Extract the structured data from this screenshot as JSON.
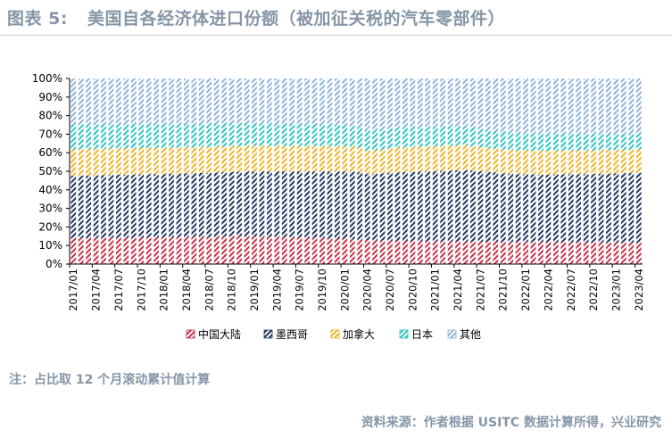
{
  "header": {
    "figure_label": "图表 5:",
    "title": "美国自各经济体进口份额（被加征关税的汽车零部件）"
  },
  "footer": {
    "note": "注：占比取 12 个月滚动累计值计算",
    "source": "资料来源：作者根据 USITC 数据计算所得，兴业研究"
  },
  "chart_data": {
    "type": "bar",
    "stacked": true,
    "title": "美国自各经济体进口份额（被加征关税的汽车零部件）",
    "ylim": [
      0,
      100
    ],
    "yticks": [
      "0%",
      "10%",
      "20%",
      "30%",
      "40%",
      "50%",
      "60%",
      "70%",
      "80%",
      "90%",
      "100%"
    ],
    "legend_position": "bottom",
    "categories": [
      "2017/01",
      "2017/02",
      "2017/03",
      "2017/04",
      "2017/05",
      "2017/06",
      "2017/07",
      "2017/08",
      "2017/09",
      "2017/10",
      "2017/11",
      "2017/12",
      "2018/01",
      "2018/02",
      "2018/03",
      "2018/04",
      "2018/05",
      "2018/06",
      "2018/07",
      "2018/08",
      "2018/09",
      "2018/10",
      "2018/11",
      "2018/12",
      "2019/01",
      "2019/02",
      "2019/03",
      "2019/04",
      "2019/05",
      "2019/06",
      "2019/07",
      "2019/08",
      "2019/09",
      "2019/10",
      "2019/11",
      "2019/12",
      "2020/01",
      "2020/02",
      "2020/03",
      "2020/04",
      "2020/05",
      "2020/06",
      "2020/07",
      "2020/08",
      "2020/09",
      "2020/10",
      "2020/11",
      "2020/12",
      "2021/01",
      "2021/02",
      "2021/03",
      "2021/04",
      "2021/05",
      "2021/06",
      "2021/07",
      "2021/08",
      "2021/09",
      "2021/10",
      "2021/11",
      "2021/12",
      "2022/01",
      "2022/02",
      "2022/03",
      "2022/04",
      "2022/05",
      "2022/06",
      "2022/07",
      "2022/08",
      "2022/09",
      "2022/10",
      "2022/11",
      "2022/12",
      "2023/01",
      "2023/02",
      "2023/03",
      "2023/04"
    ],
    "x_tick_labels": [
      "2017/01",
      "2017/04",
      "2017/07",
      "2017/10",
      "2018/01",
      "2018/04",
      "2018/07",
      "2018/10",
      "2019/01",
      "2019/04",
      "2019/07",
      "2019/10",
      "2020/01",
      "2020/04",
      "2020/07",
      "2020/10",
      "2021/01",
      "2021/04",
      "2021/07",
      "2021/10",
      "2022/01",
      "2022/04",
      "2022/07",
      "2022/10",
      "2023/01",
      "2023/04"
    ],
    "series": [
      {
        "name": "中国大陆",
        "color": "#c8324a",
        "values": [
          14.0,
          14.0,
          14.0,
          14.0,
          14.1,
          14.1,
          14.1,
          14.1,
          14.2,
          14.2,
          14.3,
          14.3,
          14.3,
          14.4,
          14.4,
          14.5,
          14.5,
          14.6,
          14.6,
          14.7,
          14.8,
          14.9,
          15.0,
          15.0,
          14.9,
          14.8,
          14.7,
          14.6,
          14.5,
          14.4,
          14.3,
          14.2,
          14.1,
          14.0,
          13.9,
          13.7,
          13.5,
          13.3,
          13.1,
          12.9,
          12.8,
          12.7,
          12.6,
          12.5,
          12.5,
          12.4,
          12.4,
          12.3,
          12.3,
          12.3,
          12.2,
          12.2,
          12.1,
          12.1,
          12.0,
          12.0,
          12.0,
          11.9,
          11.9,
          11.9,
          11.9,
          11.9,
          11.8,
          11.8,
          11.8,
          11.8,
          11.8,
          11.7,
          11.7,
          11.7,
          11.7,
          11.6,
          11.6,
          11.6,
          11.6,
          11.6
        ]
      },
      {
        "name": "墨西哥",
        "color": "#1f3864",
        "values": [
          33.5,
          33.6,
          33.7,
          33.8,
          33.8,
          33.9,
          34.0,
          34.0,
          34.0,
          34.1,
          34.1,
          34.2,
          34.2,
          34.3,
          34.3,
          34.4,
          34.4,
          34.5,
          34.5,
          34.6,
          34.7,
          34.7,
          34.8,
          34.9,
          35.0,
          35.1,
          35.2,
          35.3,
          35.4,
          35.5,
          35.6,
          35.7,
          35.8,
          35.9,
          36.0,
          36.2,
          36.4,
          36.5,
          36.4,
          35.8,
          35.8,
          36.2,
          36.6,
          36.8,
          37.0,
          37.2,
          37.4,
          37.6,
          37.7,
          37.9,
          38.1,
          38.3,
          38.4,
          38.3,
          38.0,
          37.6,
          37.3,
          37.0,
          36.8,
          36.6,
          36.5,
          36.4,
          36.4,
          36.4,
          36.5,
          36.6,
          36.7,
          36.8,
          36.8,
          36.9,
          37.0,
          37.1,
          37.2,
          37.3,
          37.4,
          37.5
        ]
      },
      {
        "name": "加拿大",
        "color": "#f0b429",
        "values": [
          14.3,
          14.3,
          14.3,
          14.3,
          14.3,
          14.2,
          14.2,
          14.2,
          14.2,
          14.2,
          14.1,
          14.1,
          14.1,
          14.1,
          14.0,
          14.0,
          14.0,
          14.0,
          14.0,
          14.0,
          13.9,
          13.9,
          13.9,
          13.9,
          13.9,
          13.8,
          13.8,
          13.8,
          13.8,
          13.8,
          13.7,
          13.7,
          13.7,
          13.7,
          13.7,
          13.6,
          13.5,
          13.4,
          13.2,
          12.6,
          12.5,
          12.9,
          13.2,
          13.4,
          13.5,
          13.5,
          13.5,
          13.5,
          13.5,
          13.5,
          13.5,
          13.5,
          13.4,
          13.2,
          13.0,
          12.9,
          12.9,
          12.9,
          12.9,
          12.8,
          12.8,
          12.8,
          12.8,
          12.8,
          12.8,
          12.8,
          12.8,
          12.8,
          12.7,
          12.7,
          12.7,
          12.7,
          12.7,
          12.7,
          12.7,
          12.7
        ]
      },
      {
        "name": "日本",
        "color": "#2ec4c4",
        "values": [
          13.5,
          13.4,
          13.3,
          13.2,
          13.2,
          13.1,
          13.0,
          13.0,
          12.9,
          12.8,
          12.8,
          12.7,
          12.7,
          12.6,
          12.6,
          12.6,
          12.5,
          12.5,
          12.4,
          12.4,
          12.3,
          12.3,
          12.2,
          12.2,
          12.1,
          12.1,
          12.1,
          12.0,
          12.0,
          11.9,
          11.9,
          11.8,
          11.8,
          11.7,
          11.7,
          11.6,
          11.6,
          11.4,
          11.2,
          10.9,
          10.9,
          10.8,
          10.8,
          10.8,
          10.7,
          10.7,
          10.6,
          10.6,
          10.5,
          10.5,
          10.4,
          10.3,
          10.1,
          9.9,
          9.8,
          9.7,
          9.6,
          9.5,
          9.4,
          9.4,
          9.3,
          9.2,
          9.2,
          9.2,
          9.1,
          9.0,
          9.0,
          8.9,
          8.8,
          8.8,
          8.8,
          8.7,
          8.6,
          8.5,
          8.4,
          8.3
        ]
      },
      {
        "name": "其他",
        "color": "#8fb3d9",
        "values": [
          24.7,
          24.7,
          24.7,
          24.7,
          24.6,
          24.7,
          24.7,
          24.7,
          24.7,
          24.7,
          24.7,
          24.7,
          24.7,
          24.6,
          24.7,
          24.5,
          24.6,
          24.4,
          24.5,
          24.3,
          24.3,
          24.2,
          24.1,
          24.0,
          24.1,
          24.2,
          24.2,
          24.3,
          24.3,
          24.4,
          24.5,
          24.6,
          24.6,
          24.7,
          24.7,
          24.9,
          25.0,
          25.4,
          26.1,
          27.8,
          28.0,
          27.4,
          26.8,
          26.5,
          26.3,
          26.2,
          26.1,
          26.0,
          26.0,
          25.8,
          25.8,
          25.7,
          26.0,
          26.5,
          27.2,
          27.8,
          28.2,
          28.7,
          29.0,
          29.3,
          29.5,
          29.7,
          29.8,
          29.8,
          29.8,
          29.8,
          29.7,
          29.8,
          30.0,
          29.9,
          29.8,
          29.9,
          29.9,
          29.9,
          29.9,
          29.9
        ]
      }
    ]
  }
}
